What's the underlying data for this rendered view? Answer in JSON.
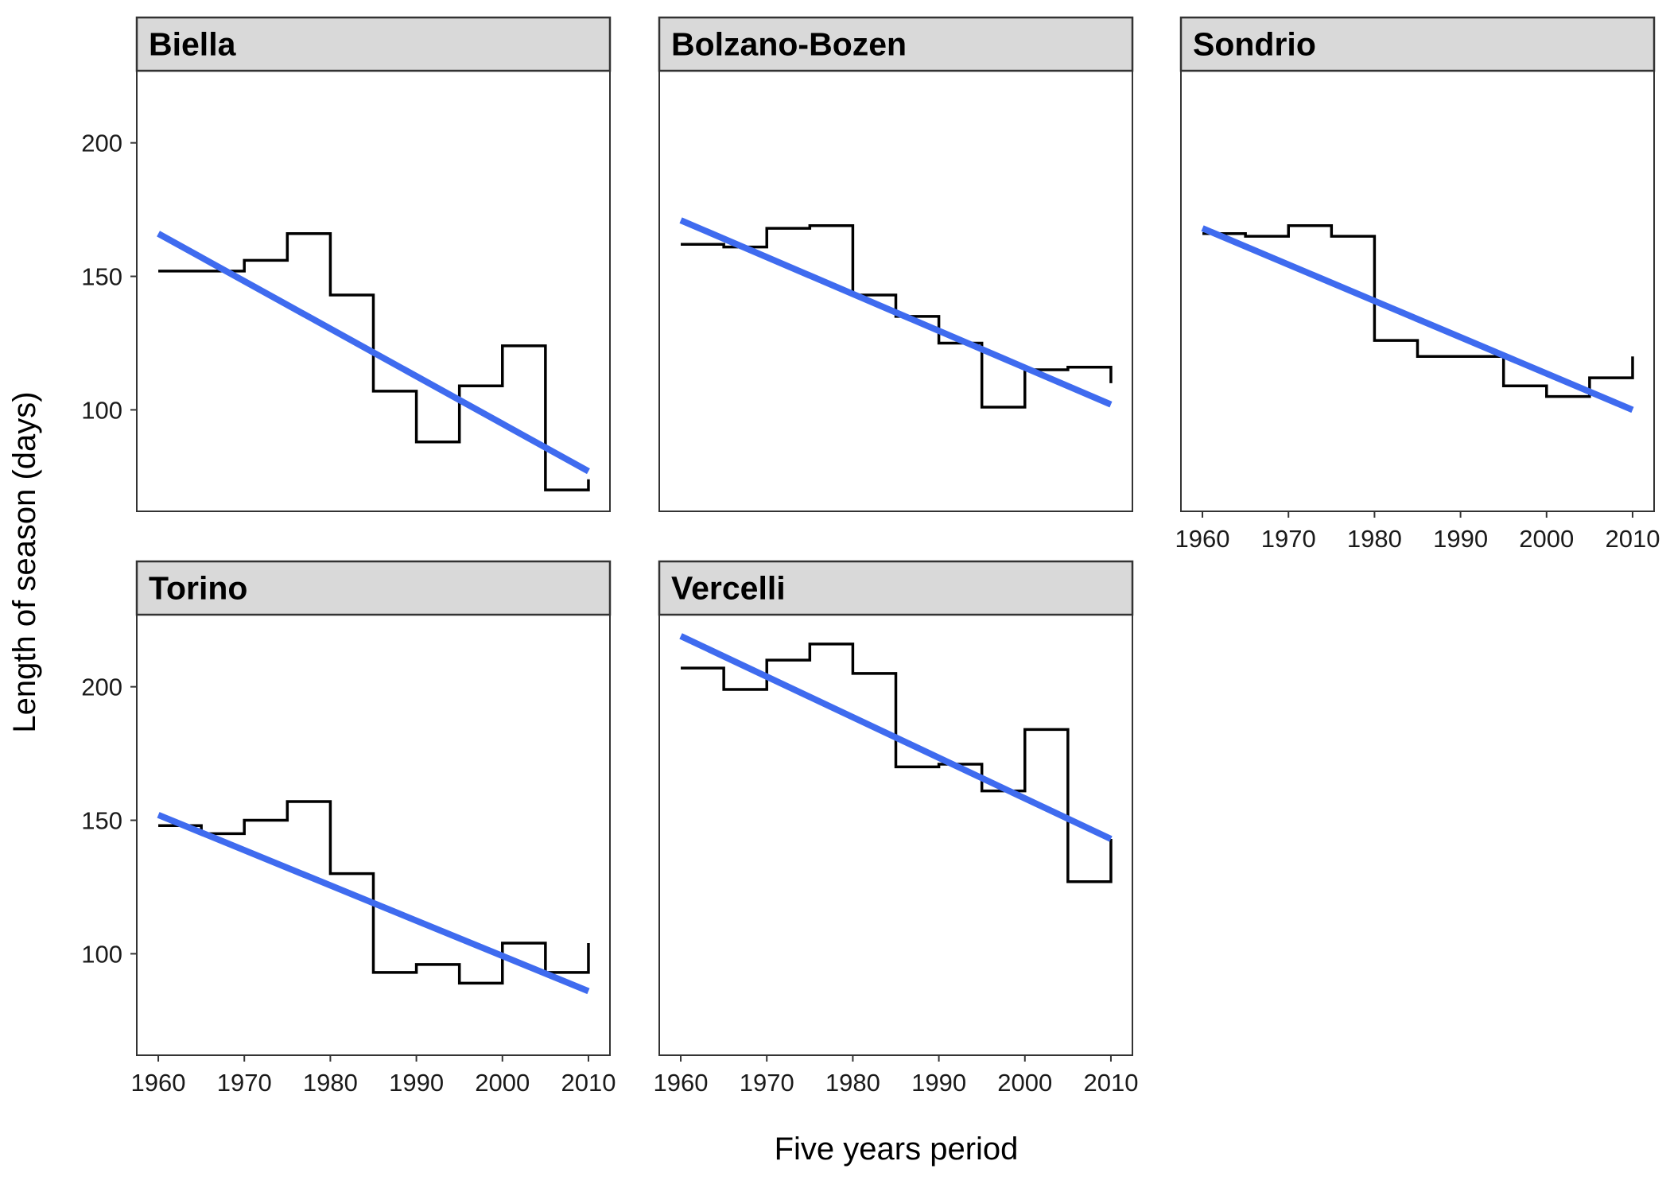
{
  "chart_data": {
    "type": "line",
    "layout": "facet-wrap",
    "xlabel": "Five years period",
    "ylabel": "Length of season (days)",
    "xlim": [
      1957.5,
      2012.5
    ],
    "ylim": [
      62,
      227
    ],
    "x_ticks": [
      1960,
      1970,
      1980,
      1990,
      2000,
      2010
    ],
    "y_ticks": [
      100,
      150,
      200
    ],
    "x_tick_labels": [
      "1960",
      "1970",
      "1980",
      "1990",
      "2000",
      "2010"
    ],
    "y_tick_labels": [
      "100",
      "150",
      "200"
    ],
    "grid": false,
    "colors": {
      "step": "#000000",
      "trend": "#3f6bef",
      "strip": "#d9d9d9"
    },
    "series_style": {
      "step": "step-after",
      "trend": "linear-fit"
    },
    "panels": [
      {
        "title": "Biella",
        "x": [
          1960,
          1965,
          1970,
          1975,
          1980,
          1985,
          1990,
          1995,
          2000,
          2005,
          2010
        ],
        "values": [
          152,
          152,
          156,
          166,
          143,
          107,
          88,
          109,
          124,
          70,
          74
        ],
        "trend": {
          "x": [
            1960,
            2010
          ],
          "y": [
            166,
            77
          ]
        }
      },
      {
        "title": "Bolzano-Bozen",
        "x": [
          1960,
          1965,
          1970,
          1975,
          1980,
          1985,
          1990,
          1995,
          2000,
          2005,
          2010
        ],
        "values": [
          162,
          161,
          168,
          169,
          143,
          135,
          125,
          101,
          115,
          116,
          110
        ],
        "trend": {
          "x": [
            1960,
            2010
          ],
          "y": [
            171,
            102
          ]
        }
      },
      {
        "title": "Sondrio",
        "x": [
          1960,
          1965,
          1970,
          1975,
          1980,
          1985,
          1990,
          1995,
          2000,
          2005,
          2010
        ],
        "values": [
          166,
          165,
          169,
          165,
          126,
          120,
          120,
          109,
          105,
          112,
          120
        ],
        "trend": {
          "x": [
            1960,
            2010
          ],
          "y": [
            168,
            100
          ]
        }
      },
      {
        "title": "Torino",
        "x": [
          1960,
          1965,
          1970,
          1975,
          1980,
          1985,
          1990,
          1995,
          2000,
          2005,
          2010
        ],
        "values": [
          148,
          145,
          150,
          157,
          130,
          93,
          96,
          89,
          104,
          93,
          104
        ],
        "trend": {
          "x": [
            1960,
            2010
          ],
          "y": [
            152,
            86
          ]
        }
      },
      {
        "title": "Vercelli",
        "x": [
          1960,
          1965,
          1970,
          1975,
          1980,
          1985,
          1990,
          1995,
          2000,
          2005,
          2010
        ],
        "values": [
          207,
          199,
          210,
          216,
          205,
          170,
          171,
          161,
          184,
          127,
          143
        ],
        "trend": {
          "x": [
            1960,
            2010
          ],
          "y": [
            219,
            143
          ]
        }
      }
    ]
  }
}
